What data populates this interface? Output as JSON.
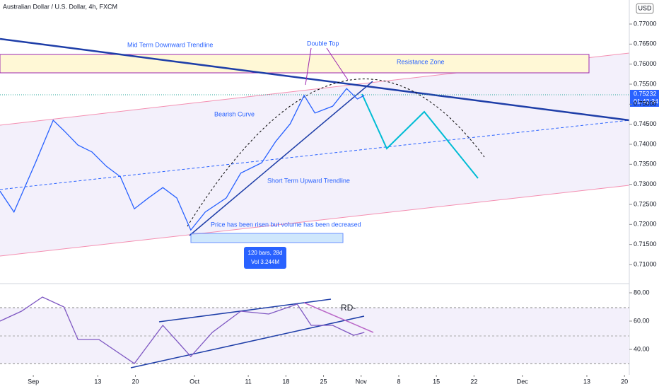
{
  "header": {
    "title": "Australian Dollar / U.S. Dollar, 4h, FXCM",
    "currency": "USD",
    "last_price": "0.75232",
    "countdown": "01:42:34"
  },
  "annotations": {
    "mid_term": "Mid Term Downward Trendline",
    "double_top": "Double Top",
    "resistance": "Resistance Zone",
    "bearish_curve": "Bearish Curve",
    "short_term": "Short Term Upward Trendline",
    "volume_note": "Price has been risen but volume has been decreased",
    "range_bars": "120 bars, 28d",
    "range_vol": "Vol 3.244M",
    "rd": "RD-"
  },
  "chart_data": [
    {
      "type": "line",
      "color": "#2962ff",
      "xlim": [
        -6.2,
        110.9
      ],
      "ylim": [
        0.70541,
        0.776
      ],
      "x": [
        -6.2,
        -3.6,
        0.4,
        3.7,
        5.7,
        8.3,
        10.9,
        13.6,
        16.2,
        18.8,
        21.4,
        24.1,
        26.7,
        29.3,
        32,
        35.9,
        38.6,
        42.5,
        45.1,
        47.8,
        50.4,
        52.4,
        55.7,
        58.3,
        60.3,
        61.6
      ],
      "values": [
        0.7283,
        0.7231,
        0.7354,
        0.746,
        0.7434,
        0.7398,
        0.7381,
        0.7345,
        0.7319,
        0.7239,
        0.7266,
        0.7292,
        0.7266,
        0.7186,
        0.7231,
        0.7266,
        0.7328,
        0.7354,
        0.7407,
        0.7451,
        0.7522,
        0.7478,
        0.7495,
        0.7539,
        0.7513,
        0.7522
      ],
      "yticks": [
        {
          "value": 0.77,
          "label": "0.77000"
        },
        {
          "value": 0.765,
          "label": "0.76500"
        },
        {
          "value": 0.76,
          "label": "0.76000"
        },
        {
          "value": 0.755,
          "label": "0.75500"
        },
        {
          "value": 0.75,
          "label": "0.75000"
        },
        {
          "value": 0.745,
          "label": "0.74500"
        },
        {
          "value": 0.74,
          "label": "0.74000"
        },
        {
          "value": 0.735,
          "label": "0.73500"
        },
        {
          "value": 0.73,
          "label": "0.73000"
        },
        {
          "value": 0.725,
          "label": "0.72500"
        },
        {
          "value": 0.72,
          "label": "0.72000"
        },
        {
          "value": 0.715,
          "label": "0.71500"
        },
        {
          "value": 0.71,
          "label": "0.71000"
        }
      ],
      "xticks": [
        {
          "value": 0,
          "label": "Sep"
        },
        {
          "value": 12,
          "label": "13"
        },
        {
          "value": 19,
          "label": "20"
        },
        {
          "value": 30,
          "label": "Oct"
        },
        {
          "value": 40,
          "label": "11"
        },
        {
          "value": 47,
          "label": "18"
        },
        {
          "value": 54,
          "label": "25"
        },
        {
          "value": 61,
          "label": "Nov"
        },
        {
          "value": 68,
          "label": "8"
        },
        {
          "value": 75,
          "label": "15"
        },
        {
          "value": 82,
          "label": "22"
        },
        {
          "value": 91,
          "label": "Dec"
        },
        {
          "value": 103,
          "label": "13"
        },
        {
          "value": 110,
          "label": "20"
        }
      ]
    },
    {
      "type": "line",
      "color": "#7e57c2",
      "xlim": [
        -6.2,
        110.9
      ],
      "ylim": [
        22,
        86
      ],
      "x": [
        -6.2,
        -2.2,
        1.7,
        5.7,
        8.3,
        12.2,
        18.8,
        24.1,
        29.3,
        33.3,
        38.6,
        43.8,
        49.1,
        51.7,
        55.7,
        59.6,
        61.6
      ],
      "values": [
        60,
        67,
        77,
        70,
        47,
        47,
        30,
        57,
        35,
        52,
        67,
        65,
        72,
        57,
        57,
        50,
        52
      ],
      "yticks": [
        {
          "value": 80,
          "label": "80.00"
        },
        {
          "value": 60,
          "label": "60.00"
        },
        {
          "value": 40,
          "label": "40.00"
        }
      ]
    }
  ]
}
